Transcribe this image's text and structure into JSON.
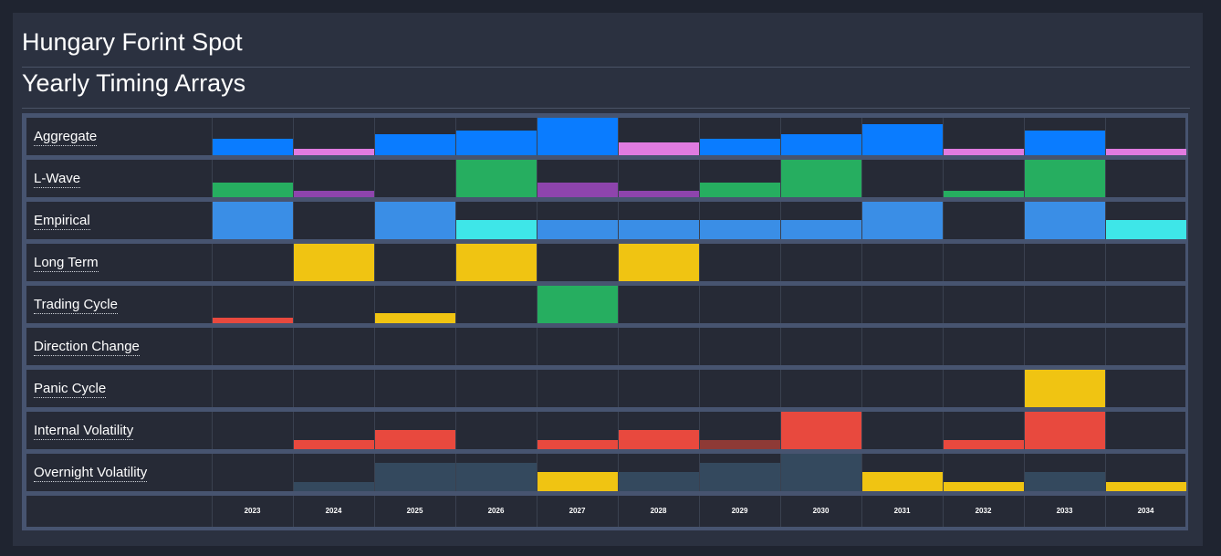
{
  "header": {
    "title": "Hungary Forint Spot",
    "subtitle": "Yearly Timing Arrays"
  },
  "colors": {
    "blue": "#0a7cff",
    "pink": "#e07be0",
    "green": "#26ae60",
    "purple": "#8e44ad",
    "light_blue": "#3a8ee6",
    "cyan": "#3ee6e8",
    "yellow": "#f0c412",
    "red": "#e8493e",
    "dark_red": "#8e3a36",
    "slate": "#34495e"
  },
  "years": [
    "2023",
    "2024",
    "2025",
    "2026",
    "2027",
    "2028",
    "2029",
    "2030",
    "2031",
    "2032",
    "2033",
    "2034"
  ],
  "rows": [
    {
      "label": "Aggregate",
      "cells": [
        {
          "level": 0.45,
          "color": "blue"
        },
        {
          "level": 0.18,
          "color": "pink"
        },
        {
          "level": 0.55,
          "color": "blue"
        },
        {
          "level": 0.65,
          "color": "blue"
        },
        {
          "level": 1.0,
          "color": "blue"
        },
        {
          "level": 0.35,
          "color": "pink"
        },
        {
          "level": 0.45,
          "color": "blue"
        },
        {
          "level": 0.55,
          "color": "blue"
        },
        {
          "level": 0.82,
          "color": "blue"
        },
        {
          "level": 0.18,
          "color": "pink"
        },
        {
          "level": 0.65,
          "color": "blue"
        },
        {
          "level": 0.18,
          "color": "pink"
        }
      ]
    },
    {
      "label": "L-Wave",
      "cells": [
        {
          "level": 0.38,
          "color": "green"
        },
        {
          "level": 0.18,
          "color": "purple"
        },
        {
          "level": 0,
          "color": ""
        },
        {
          "level": 1.0,
          "color": "green"
        },
        {
          "level": 0.38,
          "color": "purple"
        },
        {
          "level": 0.18,
          "color": "purple"
        },
        {
          "level": 0.38,
          "color": "green"
        },
        {
          "level": 1.0,
          "color": "green"
        },
        {
          "level": 0,
          "color": ""
        },
        {
          "level": 0.18,
          "color": "green"
        },
        {
          "level": 1.0,
          "color": "green"
        },
        {
          "level": 0,
          "color": ""
        }
      ]
    },
    {
      "label": "Empirical",
      "cells": [
        {
          "level": 1.0,
          "color": "light_blue"
        },
        {
          "level": 0,
          "color": ""
        },
        {
          "level": 1.0,
          "color": "light_blue"
        },
        {
          "level": 0.5,
          "color": "cyan"
        },
        {
          "level": 0.5,
          "color": "light_blue"
        },
        {
          "level": 0.5,
          "color": "light_blue"
        },
        {
          "level": 0.5,
          "color": "light_blue"
        },
        {
          "level": 0.5,
          "color": "light_blue"
        },
        {
          "level": 1.0,
          "color": "light_blue"
        },
        {
          "level": 0,
          "color": ""
        },
        {
          "level": 1.0,
          "color": "light_blue"
        },
        {
          "level": 0.5,
          "color": "cyan"
        }
      ]
    },
    {
      "label": "Long Term",
      "cells": [
        {
          "level": 0,
          "color": ""
        },
        {
          "level": 1.0,
          "color": "yellow"
        },
        {
          "level": 0,
          "color": ""
        },
        {
          "level": 1.0,
          "color": "yellow"
        },
        {
          "level": 0,
          "color": ""
        },
        {
          "level": 1.0,
          "color": "yellow"
        },
        {
          "level": 0,
          "color": ""
        },
        {
          "level": 0,
          "color": ""
        },
        {
          "level": 0,
          "color": ""
        },
        {
          "level": 0,
          "color": ""
        },
        {
          "level": 0,
          "color": ""
        },
        {
          "level": 0,
          "color": ""
        }
      ]
    },
    {
      "label": "Trading Cycle",
      "cells": [
        {
          "level": 0.15,
          "color": "red"
        },
        {
          "level": 0,
          "color": ""
        },
        {
          "level": 0.28,
          "color": "yellow"
        },
        {
          "level": 0,
          "color": ""
        },
        {
          "level": 1.0,
          "color": "green"
        },
        {
          "level": 0,
          "color": ""
        },
        {
          "level": 0,
          "color": ""
        },
        {
          "level": 0,
          "color": ""
        },
        {
          "level": 0,
          "color": ""
        },
        {
          "level": 0,
          "color": ""
        },
        {
          "level": 0,
          "color": ""
        },
        {
          "level": 0,
          "color": ""
        }
      ]
    },
    {
      "label": "Direction Change",
      "cells": [
        {
          "level": 0,
          "color": ""
        },
        {
          "level": 0,
          "color": ""
        },
        {
          "level": 0,
          "color": ""
        },
        {
          "level": 0,
          "color": ""
        },
        {
          "level": 0,
          "color": ""
        },
        {
          "level": 0,
          "color": ""
        },
        {
          "level": 0,
          "color": ""
        },
        {
          "level": 0,
          "color": ""
        },
        {
          "level": 0,
          "color": ""
        },
        {
          "level": 0,
          "color": ""
        },
        {
          "level": 0,
          "color": ""
        },
        {
          "level": 0,
          "color": ""
        }
      ]
    },
    {
      "label": "Panic Cycle",
      "cells": [
        {
          "level": 0,
          "color": ""
        },
        {
          "level": 0,
          "color": ""
        },
        {
          "level": 0,
          "color": ""
        },
        {
          "level": 0,
          "color": ""
        },
        {
          "level": 0,
          "color": ""
        },
        {
          "level": 0,
          "color": ""
        },
        {
          "level": 0,
          "color": ""
        },
        {
          "level": 0,
          "color": ""
        },
        {
          "level": 0,
          "color": ""
        },
        {
          "level": 0,
          "color": ""
        },
        {
          "level": 1.0,
          "color": "yellow"
        },
        {
          "level": 0,
          "color": ""
        }
      ]
    },
    {
      "label": "Internal Volatility",
      "cells": [
        {
          "level": 0,
          "color": ""
        },
        {
          "level": 0.25,
          "color": "red"
        },
        {
          "level": 0.5,
          "color": "red"
        },
        {
          "level": 0,
          "color": ""
        },
        {
          "level": 0.25,
          "color": "red"
        },
        {
          "level": 0.5,
          "color": "red"
        },
        {
          "level": 0.25,
          "color": "dark_red"
        },
        {
          "level": 1.0,
          "color": "red"
        },
        {
          "level": 0,
          "color": ""
        },
        {
          "level": 0.25,
          "color": "red"
        },
        {
          "level": 1.0,
          "color": "red"
        },
        {
          "level": 0,
          "color": ""
        }
      ]
    },
    {
      "label": "Overnight Volatility",
      "cells": [
        {
          "level": 0,
          "color": ""
        },
        {
          "level": 0.25,
          "color": "slate"
        },
        {
          "level": 0.75,
          "color": "slate"
        },
        {
          "level": 0.75,
          "color": "slate"
        },
        {
          "level": 0.5,
          "color": "yellow"
        },
        {
          "level": 0.5,
          "color": "slate"
        },
        {
          "level": 0.75,
          "color": "slate"
        },
        {
          "level": 1.0,
          "color": "slate"
        },
        {
          "level": 0.5,
          "color": "yellow"
        },
        {
          "level": 0.25,
          "color": "yellow"
        },
        {
          "level": 0.5,
          "color": "slate"
        },
        {
          "level": 0.25,
          "color": "yellow"
        }
      ]
    }
  ]
}
